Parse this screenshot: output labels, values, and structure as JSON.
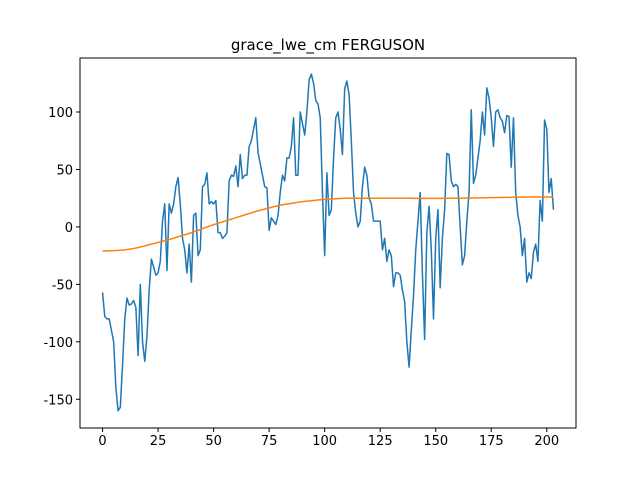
{
  "chart_data": {
    "type": "line",
    "title": "grace_lwe_cm FERGUSON",
    "x": [
      0,
      1,
      2,
      3,
      4,
      5,
      6,
      7,
      8,
      9,
      10,
      11,
      12,
      13,
      14,
      15,
      16,
      17,
      18,
      19,
      20,
      21,
      22,
      23,
      24,
      25,
      26,
      27,
      28,
      29,
      30,
      31,
      32,
      33,
      34,
      35,
      36,
      37,
      38,
      39,
      40,
      41,
      42,
      43,
      44,
      45,
      46,
      47,
      48,
      49,
      50,
      51,
      52,
      53,
      54,
      55,
      56,
      57,
      58,
      59,
      60,
      61,
      62,
      63,
      64,
      65,
      66,
      67,
      68,
      69,
      70,
      71,
      72,
      73,
      74,
      75,
      76,
      77,
      78,
      79,
      80,
      81,
      82,
      83,
      84,
      85,
      86,
      87,
      88,
      89,
      90,
      91,
      92,
      93,
      94,
      95,
      96,
      97,
      98,
      99,
      100,
      101,
      102,
      103,
      104,
      105,
      106,
      107,
      108,
      109,
      110,
      111,
      112,
      113,
      114,
      115,
      116,
      117,
      118,
      119,
      120,
      121,
      122,
      123,
      124,
      125,
      126,
      127,
      128,
      129,
      130,
      131,
      132,
      133,
      134,
      135,
      136,
      137,
      138,
      139,
      140,
      141,
      142,
      143,
      144,
      145,
      146,
      147,
      148,
      149,
      150,
      151,
      152,
      153,
      154,
      155,
      156,
      157,
      158,
      159,
      160,
      161,
      162,
      163,
      164,
      165,
      166,
      167,
      168,
      169,
      170,
      171,
      172,
      173,
      174,
      175,
      176,
      177,
      178,
      179,
      180,
      181,
      182,
      183,
      184,
      185,
      186,
      187,
      188,
      189,
      190,
      191,
      192,
      193,
      194,
      195,
      196,
      197,
      198,
      199,
      200,
      201,
      202,
      203
    ],
    "series": [
      {
        "color": "#1f77b4",
        "values": [
          -57,
          -78,
          -80,
          -80,
          -90,
          -100,
          -140,
          -160,
          -157,
          -120,
          -80,
          -62,
          -68,
          -67,
          -64,
          -70,
          -112,
          -50,
          -100,
          -117,
          -95,
          -55,
          -28,
          -35,
          -42,
          -40,
          -30,
          5,
          20,
          -38,
          20,
          12,
          20,
          35,
          43,
          20,
          -10,
          -20,
          -40,
          -15,
          -48,
          10,
          12,
          -25,
          -20,
          35,
          37,
          47,
          20,
          22,
          20,
          23,
          -5,
          -5,
          -10,
          -8,
          -5,
          40,
          45,
          44,
          53,
          35,
          63,
          42,
          45,
          45,
          70,
          75,
          85,
          95,
          65,
          55,
          45,
          35,
          34,
          -3,
          8,
          5,
          2,
          10,
          30,
          45,
          40,
          60,
          60,
          70,
          95,
          45,
          45,
          100,
          90,
          80,
          100,
          128,
          133,
          125,
          110,
          107,
          95,
          30,
          -25,
          47,
          10,
          15,
          60,
          95,
          100,
          85,
          63,
          120,
          127,
          115,
          75,
          30,
          12,
          0,
          5,
          35,
          52,
          45,
          25,
          20,
          5,
          5,
          5,
          5,
          -20,
          -10,
          -30,
          -20,
          -25,
          -52,
          -40,
          -40,
          -42,
          -55,
          -65,
          -100,
          -122,
          -90,
          -60,
          -20,
          5,
          30,
          -40,
          -98,
          -5,
          18,
          -20,
          -80,
          -10,
          15,
          -53,
          -10,
          15,
          64,
          63,
          40,
          35,
          37,
          35,
          0,
          -33,
          -25,
          5,
          30,
          102,
          38,
          45,
          60,
          75,
          100,
          80,
          121,
          112,
          95,
          70,
          100,
          102,
          95,
          92,
          82,
          97,
          96,
          52,
          95,
          30,
          10,
          0,
          -25,
          -10,
          -48,
          -40,
          -45,
          -22,
          -15,
          -30,
          23,
          5,
          93,
          85,
          30,
          42,
          15
        ]
      },
      {
        "color": "#ff7f0e",
        "values": [
          -21,
          -21,
          -20.9,
          -20.8,
          -20.7,
          -20.6,
          -20.5,
          -20.4,
          -20.3,
          -20.1,
          -20,
          -19.7,
          -19.4,
          -19.1,
          -18.8,
          -18.4,
          -18,
          -17.5,
          -17,
          -16.5,
          -16,
          -15.5,
          -15,
          -14.5,
          -14,
          -13.5,
          -13,
          -12.5,
          -12,
          -11.5,
          -11,
          -10.4,
          -9.8,
          -9.2,
          -8.6,
          -8,
          -7.4,
          -6.8,
          -6.2,
          -5.6,
          -5,
          -4.3,
          -3.6,
          -2.9,
          -2.2,
          -1.5,
          -0.8,
          -0.1,
          0.6,
          1.3,
          2,
          2.6,
          3.2,
          3.8,
          4.4,
          5,
          5.6,
          6.2,
          6.8,
          7.4,
          8,
          8.6,
          9.2,
          9.8,
          10.4,
          11,
          11.6,
          12.2,
          12.8,
          13.4,
          14,
          14.5,
          15,
          15.5,
          16,
          16.5,
          17,
          17.5,
          18,
          18.5,
          19,
          19.3,
          19.6,
          19.9,
          20.2,
          20.5,
          20.8,
          21.1,
          21.4,
          21.7,
          22,
          22.2,
          22.4,
          22.6,
          22.8,
          23,
          23.2,
          23.4,
          23.6,
          23.8,
          24,
          24.1,
          24.2,
          24.3,
          24.4,
          24.5,
          24.6,
          24.7,
          24.8,
          24.9,
          25,
          25,
          25,
          25,
          25,
          25,
          25,
          25,
          25,
          25,
          25,
          25,
          25,
          25,
          25,
          25,
          25,
          25,
          25,
          25,
          25,
          25,
          25,
          25,
          24.9,
          24.9,
          24.9,
          24.9,
          24.9,
          24.9,
          24.8,
          24.8,
          24.8,
          24.8,
          24.8,
          24.8,
          24.8,
          24.8,
          24.8,
          24.8,
          24.8,
          24.8,
          24.8,
          24.8,
          24.9,
          24.9,
          24.9,
          24.9,
          25,
          25,
          25,
          25,
          25.1,
          25.1,
          25.1,
          25.2,
          25.2,
          25.2,
          25.3,
          25.3,
          25.3,
          25.4,
          25.4,
          25.4,
          25.5,
          25.5,
          25.5,
          25.6,
          25.6,
          25.6,
          25.7,
          25.7,
          25.7,
          25.7,
          25.8,
          25.8,
          25.8,
          25.8,
          25.9,
          25.9,
          25.9,
          25.9,
          26,
          26,
          26,
          26,
          26,
          26,
          26,
          26,
          26,
          26,
          26,
          26
        ]
      }
    ],
    "xlim": [
      -10.15,
      213.15
    ],
    "ylim": [
      -175,
      147
    ],
    "xticks": [
      0,
      25,
      50,
      75,
      100,
      125,
      150,
      175,
      200
    ],
    "yticks": [
      -150,
      -100,
      -50,
      0,
      50,
      100
    ]
  }
}
